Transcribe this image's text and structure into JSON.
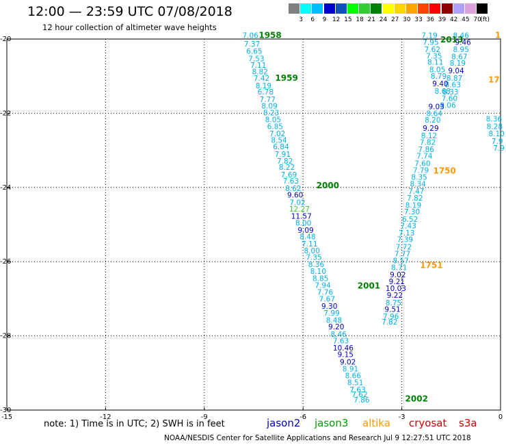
{
  "title": "12:00 — 23:59 UTC 07/08/2018",
  "subtitle": "12 hour collection of altimeter wave heights",
  "colorbar": {
    "unit": "(ft)",
    "labels": [
      "3",
      "6",
      "9",
      "12",
      "15",
      "18",
      "21",
      "24",
      "27",
      "30",
      "33",
      "36",
      "39",
      "42",
      "45",
      "70"
    ],
    "colors": [
      "#808080",
      "#00ffff",
      "#00bfff",
      "#0000cd",
      "#0f52ba",
      "#00ff00",
      "#32cd32",
      "#008000",
      "#ffff00",
      "#ffd700",
      "#ffa500",
      "#ff4500",
      "#ff0000",
      "#8b0000",
      "#b0a0ff",
      "#dda0dd",
      "#000000"
    ]
  },
  "legend": [
    {
      "name": "jason2",
      "color": "#0000cc"
    },
    {
      "name": "jason3",
      "color": "#009900"
    },
    {
      "name": "altika",
      "color": "#ff9900"
    },
    {
      "name": "cryosat",
      "color": "#cc0000"
    },
    {
      "name": "s3a",
      "color": "#cc0000"
    }
  ],
  "note": "note:  1) Time is in UTC;  2) SWH is in feet",
  "footer": "NOAA/NESDIS Center for Satellite Applications and Research     Jul  9 12:27:51 UTC 2018",
  "chart_data": {
    "type": "scatter",
    "xlim": [
      -15,
      0
    ],
    "ylim": [
      -30,
      -20
    ],
    "xticks": [
      -15,
      -12,
      -9,
      -6,
      -3,
      0
    ],
    "yticks": [
      -20,
      -22,
      -24,
      -26,
      -28,
      -30
    ],
    "grid": true,
    "track_a": {
      "points": [
        {
          "x": -7.6,
          "y": -19.9,
          "v": "7.06"
        },
        {
          "x": -7.55,
          "y": -20.13,
          "v": "7.37"
        },
        {
          "x": -7.48,
          "y": -20.32,
          "v": "6.65"
        },
        {
          "x": -7.42,
          "y": -20.53,
          "v": "7.53"
        },
        {
          "x": -7.36,
          "y": -20.7,
          "v": "7.11"
        },
        {
          "x": -7.31,
          "y": -20.88,
          "v": "8.82"
        },
        {
          "x": -7.26,
          "y": -21.05,
          "v": "7.42"
        },
        {
          "x": -7.2,
          "y": -21.25,
          "v": "8.19"
        },
        {
          "x": -7.14,
          "y": -21.42,
          "v": "6.78"
        },
        {
          "x": -7.08,
          "y": -21.62,
          "v": "7.77"
        },
        {
          "x": -7.02,
          "y": -21.8,
          "v": "8.09"
        },
        {
          "x": -6.97,
          "y": -21.98,
          "v": "8.23"
        },
        {
          "x": -6.91,
          "y": -22.17,
          "v": "8.05"
        },
        {
          "x": -6.85,
          "y": -22.35,
          "v": "6.85"
        },
        {
          "x": -6.78,
          "y": -22.55,
          "v": "7.02"
        },
        {
          "x": -6.73,
          "y": -22.72,
          "v": "8.54"
        },
        {
          "x": -6.67,
          "y": -22.9,
          "v": "6.84"
        },
        {
          "x": -6.62,
          "y": -23.1,
          "v": "7.91"
        },
        {
          "x": -6.55,
          "y": -23.28,
          "v": "7.82"
        },
        {
          "x": -6.49,
          "y": -23.45,
          "v": "8.22"
        },
        {
          "x": -6.43,
          "y": -23.65,
          "v": "7.69"
        },
        {
          "x": -6.37,
          "y": -23.82,
          "v": "7.63"
        },
        {
          "x": -6.3,
          "y": -24.02,
          "v": "8.62"
        },
        {
          "x": -6.24,
          "y": -24.2,
          "v": "9.60"
        },
        {
          "x": -6.17,
          "y": -24.4,
          "v": "7.02"
        },
        {
          "x": -6.11,
          "y": -24.58,
          "v": "12.27"
        },
        {
          "x": -6.05,
          "y": -24.77,
          "v": "11.57"
        },
        {
          "x": -5.99,
          "y": -24.95,
          "v": "8.00"
        },
        {
          "x": -5.92,
          "y": -25.15,
          "v": "9.09"
        },
        {
          "x": -5.86,
          "y": -25.32,
          "v": "8.48"
        },
        {
          "x": -5.8,
          "y": -25.52,
          "v": "7.11"
        },
        {
          "x": -5.73,
          "y": -25.7,
          "v": "8.00"
        },
        {
          "x": -5.67,
          "y": -25.88,
          "v": "7.35"
        },
        {
          "x": -5.6,
          "y": -26.07,
          "v": "8.36"
        },
        {
          "x": -5.54,
          "y": -26.25,
          "v": "8.10"
        },
        {
          "x": -5.47,
          "y": -26.45,
          "v": "8.85"
        },
        {
          "x": -5.4,
          "y": -26.63,
          "v": "7.94"
        },
        {
          "x": -5.33,
          "y": -26.82,
          "v": "7.76"
        },
        {
          "x": -5.27,
          "y": -27.0,
          "v": "7.67"
        },
        {
          "x": -5.2,
          "y": -27.2,
          "v": "9.30"
        },
        {
          "x": -5.13,
          "y": -27.38,
          "v": "7.99"
        },
        {
          "x": -5.06,
          "y": -27.57,
          "v": "8.48"
        },
        {
          "x": -4.99,
          "y": -27.75,
          "v": "9.20"
        },
        {
          "x": -4.92,
          "y": -27.95,
          "v": "8.46"
        },
        {
          "x": -4.85,
          "y": -28.13,
          "v": "7.63"
        },
        {
          "x": -4.78,
          "y": -28.32,
          "v": "10.46"
        },
        {
          "x": -4.71,
          "y": -28.5,
          "v": "9.15"
        },
        {
          "x": -4.64,
          "y": -28.7,
          "v": "9.02"
        },
        {
          "x": -4.56,
          "y": -28.88,
          "v": "8.91"
        },
        {
          "x": -4.48,
          "y": -29.07,
          "v": "8.66"
        },
        {
          "x": -4.41,
          "y": -29.25,
          "v": "8.51"
        },
        {
          "x": -4.34,
          "y": -29.45,
          "v": "7.63"
        },
        {
          "x": -4.28,
          "y": -29.58,
          "v": "7.62"
        },
        {
          "x": -4.22,
          "y": -29.72,
          "v": "7.86"
        }
      ]
    },
    "track_b": {
      "points": [
        {
          "x": -2.16,
          "y": -19.9,
          "v": "7.19"
        },
        {
          "x": -1.2,
          "y": -19.9,
          "v": "8.46"
        },
        {
          "x": -1.14,
          "y": -20.08,
          "v": "9.46"
        },
        {
          "x": -2.12,
          "y": -20.08,
          "v": "7.95"
        },
        {
          "x": -1.2,
          "y": -20.28,
          "v": "8.95"
        },
        {
          "x": -2.07,
          "y": -20.28,
          "v": "7.62"
        },
        {
          "x": -1.25,
          "y": -20.47,
          "v": "8.67"
        },
        {
          "x": -2.02,
          "y": -20.45,
          "v": "7.35"
        },
        {
          "x": -1.3,
          "y": -20.65,
          "v": "8.19"
        },
        {
          "x": -1.98,
          "y": -20.62,
          "v": "8.11"
        },
        {
          "x": -1.35,
          "y": -20.85,
          "v": "9.04"
        },
        {
          "x": -1.92,
          "y": -20.82,
          "v": "8.05"
        },
        {
          "x": -1.4,
          "y": -21.05,
          "v": "8.87"
        },
        {
          "x": -1.88,
          "y": -21.0,
          "v": "8.79"
        },
        {
          "x": -1.45,
          "y": -21.23,
          "v": "8.63"
        },
        {
          "x": -1.83,
          "y": -21.2,
          "v": "9.40"
        },
        {
          "x": -1.52,
          "y": -21.42,
          "v": "8.33"
        },
        {
          "x": -1.76,
          "y": -21.4,
          "v": "8.68"
        },
        {
          "x": -1.55,
          "y": -21.6,
          "v": "7.60"
        },
        {
          "x": -1.6,
          "y": -21.78,
          "v": "8.06"
        },
        {
          "x": -1.95,
          "y": -21.82,
          "v": "9.03"
        },
        {
          "x": -2.01,
          "y": -22.0,
          "v": "8.64"
        },
        {
          "x": -2.06,
          "y": -22.18,
          "v": "8.20"
        },
        {
          "x": -2.12,
          "y": -22.4,
          "v": "9.29"
        },
        {
          "x": -2.17,
          "y": -22.6,
          "v": "8.12"
        },
        {
          "x": -2.21,
          "y": -22.78,
          "v": "7.82"
        },
        {
          "x": -2.26,
          "y": -22.97,
          "v": "7.86"
        },
        {
          "x": -2.31,
          "y": -23.15,
          "v": "7.74"
        },
        {
          "x": -2.37,
          "y": -23.35,
          "v": "7.60"
        },
        {
          "x": -2.42,
          "y": -23.53,
          "v": "7.79"
        },
        {
          "x": -2.47,
          "y": -23.72,
          "v": "8.35"
        },
        {
          "x": -2.51,
          "y": -23.9,
          "v": "8.34"
        },
        {
          "x": -2.56,
          "y": -24.1,
          "v": "7.47"
        },
        {
          "x": -2.6,
          "y": -24.28,
          "v": "7.82"
        },
        {
          "x": -2.65,
          "y": -24.47,
          "v": "8.19"
        },
        {
          "x": -2.69,
          "y": -24.65,
          "v": "7.30"
        },
        {
          "x": -2.75,
          "y": -24.85,
          "v": "6.52"
        },
        {
          "x": -2.8,
          "y": -25.03,
          "v": "7.43"
        },
        {
          "x": -2.85,
          "y": -25.22,
          "v": "7.13"
        },
        {
          "x": -2.9,
          "y": -25.4,
          "v": "7.39"
        },
        {
          "x": -2.94,
          "y": -25.6,
          "v": "7.72"
        },
        {
          "x": -2.98,
          "y": -25.78,
          "v": "7.77"
        },
        {
          "x": -3.03,
          "y": -25.97,
          "v": "8.57"
        },
        {
          "x": -3.08,
          "y": -26.15,
          "v": "8.71"
        },
        {
          "x": -3.12,
          "y": -26.35,
          "v": "9.02"
        },
        {
          "x": -3.15,
          "y": -26.53,
          "v": "9.21"
        },
        {
          "x": -3.18,
          "y": -26.72,
          "v": "10.03"
        },
        {
          "x": -3.21,
          "y": -26.9,
          "v": "9.22"
        },
        {
          "x": -3.25,
          "y": -27.1,
          "v": "8.75"
        },
        {
          "x": -3.28,
          "y": -27.28,
          "v": "9.51"
        },
        {
          "x": -3.33,
          "y": -27.47,
          "v": "7.96"
        },
        {
          "x": -3.37,
          "y": -27.62,
          "v": "7.82"
        },
        {
          "x": -0.2,
          "y": -22.15,
          "v": "8.36"
        },
        {
          "x": -0.18,
          "y": -22.35,
          "v": "8.28"
        },
        {
          "x": -0.12,
          "y": -22.55,
          "v": "8.10"
        },
        {
          "x": -0.1,
          "y": -22.75,
          "v": "7.9"
        },
        {
          "x": -0.05,
          "y": -22.93,
          "v": "7.9"
        }
      ]
    },
    "time_labels": [
      {
        "x": -7.0,
        "y": -19.9,
        "text": "1958",
        "color": "#008000"
      },
      {
        "x": -6.5,
        "y": -21.05,
        "text": "1959",
        "color": "#008000"
      },
      {
        "x": -5.25,
        "y": -23.95,
        "text": "2000",
        "color": "#008000"
      },
      {
        "x": -4.0,
        "y": -26.65,
        "text": "2001",
        "color": "#008000"
      },
      {
        "x": -2.55,
        "y": -29.7,
        "text": "2002",
        "color": "#008000"
      },
      {
        "x": -1.48,
        "y": -20.02,
        "text": "2013",
        "color": "#008000"
      },
      {
        "x": -0.2,
        "y": -21.1,
        "text": "17",
        "color": "#ff9900"
      },
      {
        "x": -1.7,
        "y": -23.55,
        "text": "1750",
        "color": "#ff9900"
      },
      {
        "x": -2.1,
        "y": -26.1,
        "text": "1751",
        "color": "#ff9900"
      },
      {
        "x": -0.08,
        "y": -19.9,
        "text": "1",
        "color": "#ff9900"
      }
    ]
  }
}
